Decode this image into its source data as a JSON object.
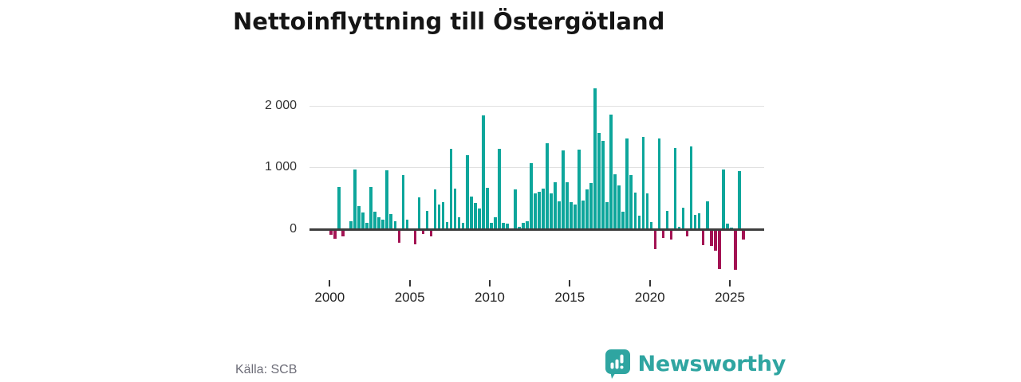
{
  "title": "Nettoinflyttning till Östergötland",
  "source": "Källa: SCB",
  "branding": {
    "logo_text": "Newsworthy",
    "logo_icon": "bar-chart-speech-bubble-icon"
  },
  "colors": {
    "positive": "#0da69b",
    "negative": "#a31353",
    "grid": "#e1e1e1",
    "axis": "#3d3d3d",
    "text": "#333333",
    "brand": "#2fa5a1"
  },
  "chart_data": {
    "type": "bar",
    "title": "Nettoinflyttning till Östergötland",
    "x_unit": "quarter",
    "start_year": 2000,
    "quarters_per_year": 4,
    "start": "2000-Q1",
    "end": "2025-Q4",
    "grid": "horizontal",
    "ylim": [
      -700,
      2400
    ],
    "y_ticks": [
      0,
      1000,
      2000
    ],
    "y_tick_labels": [
      "0",
      "1 000",
      "2 000"
    ],
    "x_ticks": [
      2000,
      2005,
      2010,
      2015,
      2020,
      2025
    ],
    "x_tick_labels": [
      "2000",
      "2005",
      "2010",
      "2015",
      "2020",
      "2025"
    ],
    "legend": "none",
    "series": [
      {
        "name": "Nettoinflyttning",
        "values": [
          -60,
          -130,
          680,
          -90,
          0,
          130,
          965,
          370,
          270,
          100,
          680,
          280,
          190,
          160,
          950,
          250,
          130,
          -190,
          880,
          150,
          0,
          -220,
          510,
          -50,
          300,
          -85,
          640,
          405,
          445,
          115,
          1300,
          660,
          190,
          105,
          1205,
          525,
          425,
          340,
          1845,
          670,
          100,
          190,
          1300,
          100,
          85,
          0,
          650,
          45,
          110,
          130,
          1065,
          585,
          610,
          660,
          1390,
          575,
          765,
          455,
          1275,
          765,
          440,
          395,
          1285,
          470,
          640,
          745,
          2280,
          1555,
          1435,
          440,
          1860,
          895,
          710,
          285,
          1475,
          880,
          595,
          220,
          1500,
          585,
          120,
          -300,
          1475,
          -120,
          300,
          -135,
          1320,
          45,
          350,
          -85,
          1335,
          230,
          260,
          -230,
          450,
          -250,
          -320,
          -620,
          965,
          90,
          25,
          -630,
          945,
          -145
        ]
      }
    ]
  }
}
